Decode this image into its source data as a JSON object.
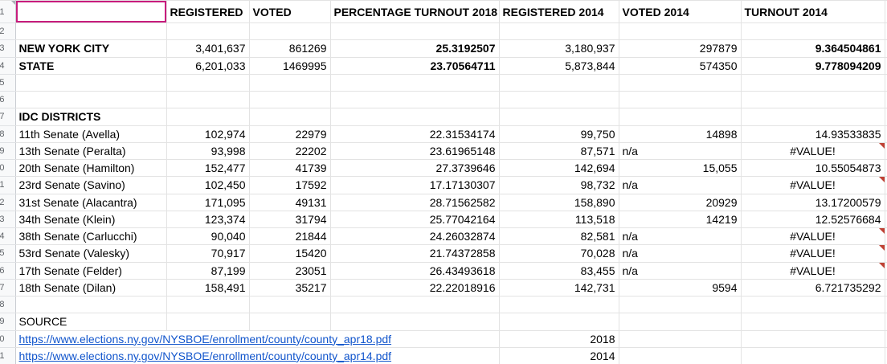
{
  "app": {
    "kind": "spreadsheet-grid"
  },
  "colors": {
    "selection_border": "#c71c7d",
    "link": "#1155cc",
    "error_marker": "#bf4134",
    "gridline": "#e3e3e3",
    "row_header_bg": "#f8f9fa"
  },
  "column_headers": [
    "",
    "REGISTERED",
    "VOTED",
    "PERCENTAGE TURNOUT 2018",
    "REGISTERED 2014",
    "VOTED 2014",
    "TURNOUT 2014"
  ],
  "sheet": {
    "rows": [
      {
        "header": true,
        "cells": [
          {
            "v": "",
            "sel": true
          },
          {
            "v": "REGISTERED",
            "b": true
          },
          {
            "v": "VOTED",
            "b": true
          },
          {
            "v": "PERCENTAGE TURNOUT 2018",
            "b": true
          },
          {
            "v": "REGISTERED 2014",
            "b": true
          },
          {
            "v": "VOTED 2014",
            "b": true
          },
          {
            "v": "TURNOUT 2014",
            "b": true
          }
        ]
      },
      {
        "cells": [
          "",
          "",
          "",
          "",
          "",
          "",
          ""
        ]
      },
      {
        "cells": [
          {
            "v": "NEW YORK CITY",
            "b": true
          },
          "3,401,637",
          "861269",
          {
            "v": "25.3192507",
            "b": true
          },
          "3,180,937",
          "297879",
          {
            "v": "9.364504861",
            "b": true
          }
        ]
      },
      {
        "cells": [
          {
            "v": "STATE",
            "b": true
          },
          "6,201,033",
          "1469995",
          {
            "v": "23.70564711",
            "b": true
          },
          "5,873,844",
          "574350",
          {
            "v": "9.778094209",
            "b": true
          }
        ]
      },
      {
        "cells": [
          "",
          "",
          "",
          "",
          "",
          "",
          ""
        ]
      },
      {
        "cells": [
          "",
          "",
          "",
          "",
          "",
          "",
          ""
        ]
      },
      {
        "cells": [
          {
            "v": "IDC DISTRICTS",
            "b": true
          },
          "",
          "",
          "",
          "",
          "",
          ""
        ]
      },
      {
        "cells": [
          "11th Senate (Avella)",
          "102,974",
          "22979",
          "22.31534174",
          "99,750",
          "14898",
          "14.93533835"
        ]
      },
      {
        "cells": [
          "13th Senate (Peralta)",
          "93,998",
          "22202",
          "23.61965148",
          "87,571",
          {
            "v": "n/a",
            "a": "l"
          },
          {
            "v": "#VALUE!",
            "a": "c",
            "err": true
          }
        ]
      },
      {
        "cells": [
          "20th Senate (Hamilton)",
          "152,477",
          "41739",
          "27.3739646",
          "142,694",
          "15,055",
          "10.55054873"
        ]
      },
      {
        "cells": [
          "23rd Senate (Savino)",
          "102,450",
          "17592",
          "17.17130307",
          "98,732",
          {
            "v": "n/a",
            "a": "l"
          },
          {
            "v": "#VALUE!",
            "a": "c",
            "err": true
          }
        ]
      },
      {
        "cells": [
          "31st Senate (Alacantra)",
          "171,095",
          "49131",
          "28.71562582",
          "158,890",
          "20929",
          "13.17200579"
        ]
      },
      {
        "cells": [
          "34th Senate (Klein)",
          "123,374",
          "31794",
          "25.77042164",
          "113,518",
          "14219",
          "12.52576684"
        ]
      },
      {
        "cells": [
          "38th Senate (Carlucchi)",
          "90,040",
          "21844",
          "24.26032874",
          "82,581",
          {
            "v": "n/a",
            "a": "l"
          },
          {
            "v": "#VALUE!",
            "a": "c",
            "err": true
          }
        ]
      },
      {
        "cells": [
          "53rd Senate (Valesky)",
          "70,917",
          "15420",
          "21.74372858",
          "70,028",
          {
            "v": "n/a",
            "a": "l"
          },
          {
            "v": "#VALUE!",
            "a": "c",
            "err": true
          }
        ]
      },
      {
        "cells": [
          "17th Senate (Felder)",
          "87,199",
          "23051",
          "26.43493618",
          "83,455",
          {
            "v": "n/a",
            "a": "l"
          },
          {
            "v": "#VALUE!",
            "a": "c",
            "err": true
          }
        ]
      },
      {
        "cells": [
          "18th Senate (Dilan)",
          "158,491",
          "35217",
          "22.22018916",
          "142,731",
          "9594",
          "6.721735292"
        ]
      },
      {
        "cells": [
          "",
          "",
          "",
          "",
          "",
          "",
          ""
        ]
      },
      {
        "cells": [
          "SOURCE",
          "",
          "",
          "",
          "",
          "",
          ""
        ]
      },
      {
        "span4": true,
        "cells": [
          {
            "v": "https://www.elections.ny.gov/NYSBOE/enrollment/county/county_apr18.pdf",
            "link": true
          },
          "2018",
          "",
          ""
        ]
      },
      {
        "span4": true,
        "cells": [
          {
            "v": "https://www.elections.ny.gov/NYSBOE/enrollment/county/county_apr14.pdf",
            "link": true
          },
          "2014",
          "",
          ""
        ]
      }
    ]
  }
}
